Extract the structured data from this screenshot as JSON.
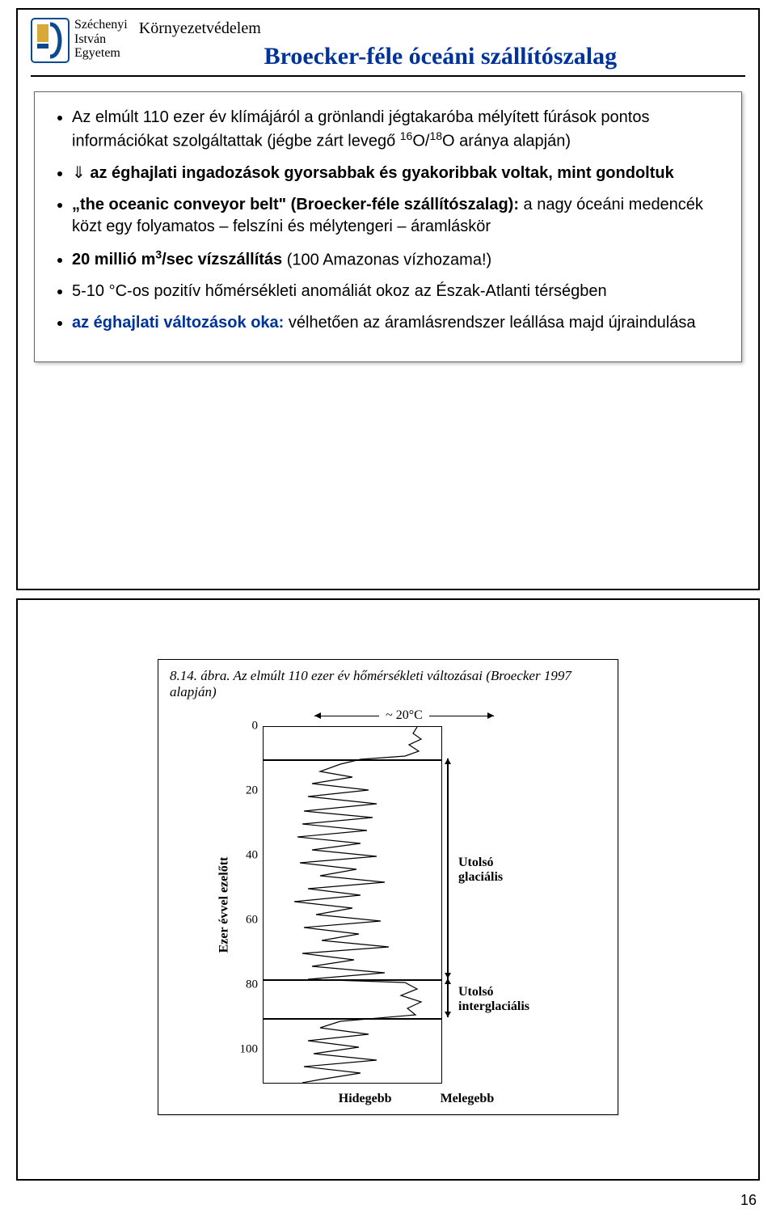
{
  "university": {
    "l1": "Széchenyi",
    "l2": "István",
    "l3": "Egyetem"
  },
  "logo_colors": {
    "border": "#0b4a8f",
    "gold": "#d6a93a"
  },
  "topic": "Környezetvédelem",
  "title": "Broecker-féle óceáni szállítószalag",
  "title_color": "#003399",
  "bullets": {
    "b1a": "Az elmúlt 110 ezer év klímájáról a grönlandi jégtakaróba mélyített fúrások pontos információkat szolgáltattak (jégbe zárt levegő ",
    "b1_iso1": "16",
    "b1_iso_o": "O/",
    "b1_iso2": "18",
    "b1_iso_end": "O aránya alapján)",
    "b2_arrow": "⇓ ",
    "b2a": "az éghajlati ingadozások gyorsabbak és gyakoribbak voltak, mint gondoltuk",
    "b3a": "„the oceanic conveyor belt\" (Broecker-féle szállítószalag):",
    "b3b": " a nagy óceáni medencék közt egy folyamatos – felszíni és mélytengeri – áramláskör",
    "b4a": "20 millió m",
    "b4sup": "3",
    "b4b": "/sec vízszállítás",
    "b4c": " (100 Amazonas vízhozama!)",
    "b5": "5-10 °C-os pozitív hőmérsékleti anomáliát okoz az Észak-Atlanti térségben",
    "b6a": "az éghajlati változások oka:",
    "b6b": " vélhetően az áramlásrendszer leállása majd újraindulása"
  },
  "page_number": "16",
  "figure": {
    "caption": "8.14. ábra. Az elmúlt 110 ezer év hőmérsékleti változásai (Broecker 1997 alapján)",
    "range_label": "~ 20°C",
    "ylabel": "Ezer évvel ezelőtt",
    "y_ticks": [
      "0",
      "20",
      "40",
      "60",
      "80",
      "100"
    ],
    "y_extent": 110,
    "x_left": "Hidegebb",
    "x_right": "Melegebb",
    "annot1": "Utolsó glaciális",
    "annot2": "Utolsó interglaciális",
    "hlines_ky": [
      10,
      78,
      90
    ],
    "period1_ky": [
      10,
      78
    ],
    "period2_ky": [
      78,
      90
    ],
    "trace_color": "#000000",
    "trace": [
      [
        190,
        0
      ],
      [
        185,
        8
      ],
      [
        195,
        15
      ],
      [
        180,
        22
      ],
      [
        192,
        30
      ],
      [
        175,
        36
      ],
      [
        120,
        40
      ],
      [
        95,
        46
      ],
      [
        70,
        55
      ],
      [
        110,
        62
      ],
      [
        60,
        70
      ],
      [
        130,
        78
      ],
      [
        55,
        86
      ],
      [
        140,
        95
      ],
      [
        50,
        104
      ],
      [
        135,
        112
      ],
      [
        48,
        120
      ],
      [
        128,
        128
      ],
      [
        42,
        136
      ],
      [
        120,
        144
      ],
      [
        60,
        152
      ],
      [
        140,
        160
      ],
      [
        45,
        168
      ],
      [
        115,
        176
      ],
      [
        70,
        184
      ],
      [
        150,
        192
      ],
      [
        55,
        200
      ],
      [
        120,
        208
      ],
      [
        38,
        216
      ],
      [
        110,
        224
      ],
      [
        65,
        232
      ],
      [
        145,
        240
      ],
      [
        50,
        248
      ],
      [
        118,
        256
      ],
      [
        72,
        264
      ],
      [
        155,
        272
      ],
      [
        48,
        280
      ],
      [
        112,
        288
      ],
      [
        60,
        296
      ],
      [
        150,
        304
      ],
      [
        55,
        312
      ],
      [
        175,
        316
      ],
      [
        190,
        324
      ],
      [
        170,
        332
      ],
      [
        195,
        340
      ],
      [
        178,
        348
      ],
      [
        188,
        356
      ],
      [
        95,
        364
      ],
      [
        70,
        372
      ],
      [
        130,
        380
      ],
      [
        55,
        388
      ],
      [
        118,
        396
      ],
      [
        62,
        404
      ],
      [
        140,
        412
      ],
      [
        50,
        420
      ],
      [
        120,
        428
      ],
      [
        70,
        436
      ],
      [
        48,
        440
      ]
    ]
  }
}
